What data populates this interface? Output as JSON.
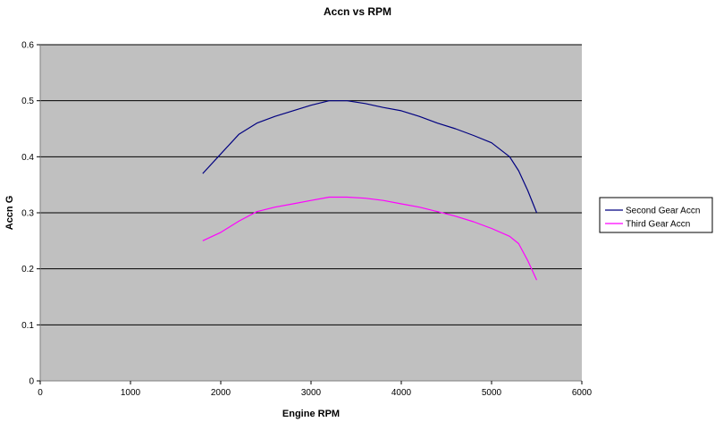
{
  "chart_data": {
    "type": "line",
    "title": "Accn vs RPM",
    "xlabel": "Engine RPM",
    "ylabel": "Accn G",
    "xlim": [
      0,
      6000
    ],
    "ylim": [
      0,
      0.6
    ],
    "xticks": [
      0,
      1000,
      2000,
      3000,
      4000,
      5000,
      6000
    ],
    "yticks": [
      0,
      0.1,
      0.2,
      0.3,
      0.4,
      0.5,
      0.6
    ],
    "ytick_labels": [
      "0",
      "0.1",
      "0.2",
      "0.3",
      "0.4",
      "0.5",
      "0.6"
    ],
    "grid": "horizontal",
    "plot_background": "#c0c0c0",
    "legend_position": "right",
    "series": [
      {
        "name": "Second Gear Accn",
        "color": "#000080",
        "x": [
          1800,
          2000,
          2200,
          2400,
          2600,
          2800,
          3000,
          3200,
          3400,
          3600,
          3800,
          4000,
          4200,
          4400,
          4600,
          4800,
          5000,
          5200,
          5300,
          5400,
          5500
        ],
        "y": [
          0.37,
          0.405,
          0.44,
          0.46,
          0.472,
          0.482,
          0.492,
          0.5,
          0.5,
          0.495,
          0.488,
          0.482,
          0.472,
          0.46,
          0.45,
          0.438,
          0.425,
          0.4,
          0.375,
          0.34,
          0.3
        ]
      },
      {
        "name": "Third Gear Accn",
        "color": "#ff00ff",
        "x": [
          1800,
          2000,
          2200,
          2400,
          2600,
          2800,
          3000,
          3200,
          3400,
          3600,
          3800,
          4000,
          4200,
          4400,
          4600,
          4800,
          5000,
          5200,
          5300,
          5400,
          5500
        ],
        "y": [
          0.25,
          0.265,
          0.285,
          0.302,
          0.31,
          0.316,
          0.322,
          0.328,
          0.328,
          0.326,
          0.322,
          0.316,
          0.31,
          0.302,
          0.294,
          0.284,
          0.272,
          0.258,
          0.245,
          0.215,
          0.18
        ]
      }
    ]
  }
}
